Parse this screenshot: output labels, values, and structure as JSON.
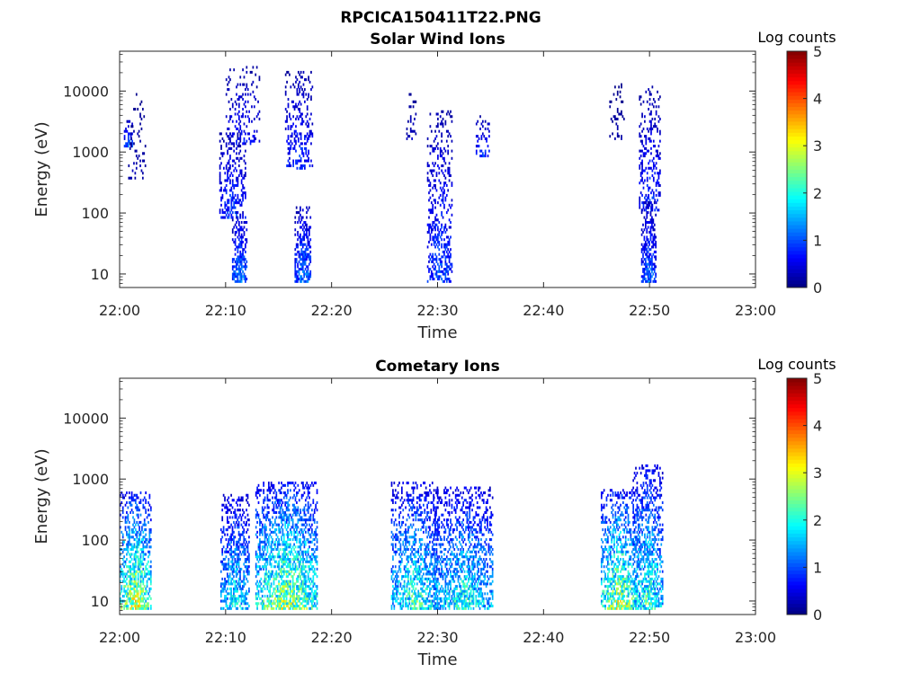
{
  "figure_title": "RPCICA150411T22.PNG",
  "chart_data": [
    {
      "type": "heatmap",
      "title": "Solar Wind Ions",
      "xlabel": "Time",
      "ylabel": "Energy (eV)",
      "x_ticks": [
        "22:00",
        "22:10",
        "22:20",
        "22:30",
        "22:40",
        "22:50",
        "23:00"
      ],
      "xlim_minutes": [
        0,
        60
      ],
      "y_scale": "log",
      "ylim": [
        6,
        45000
      ],
      "y_ticks": [
        10,
        100,
        1000,
        10000
      ],
      "y_tick_labels": [
        "10",
        "100",
        "1000",
        "10000"
      ],
      "colorbar": {
        "title": "Log counts",
        "range": [
          0,
          5
        ],
        "ticks": [
          "0",
          "1",
          "2",
          "3",
          "4",
          "5"
        ],
        "colormap": "jet"
      },
      "bursts": [
        {
          "t_start": 0.4,
          "t_end": 1.2,
          "e_low": 1100,
          "e_high": 3200,
          "max_log": 1.6,
          "density": 0.55
        },
        {
          "t_start": 0.8,
          "t_end": 2.4,
          "e_low": 300,
          "e_high": 10000,
          "max_log": 0.4,
          "density": 0.12
        },
        {
          "t_start": 9.4,
          "t_end": 11.8,
          "e_low": 80,
          "e_high": 2000,
          "max_log": 1.3,
          "density": 0.45
        },
        {
          "t_start": 10.6,
          "t_end": 12.0,
          "e_low": 7,
          "e_high": 100,
          "max_log": 1.8,
          "density": 0.7
        },
        {
          "t_start": 10.0,
          "t_end": 13.2,
          "e_low": 1200,
          "e_high": 25000,
          "max_log": 1.0,
          "density": 0.25
        },
        {
          "t_start": 15.6,
          "t_end": 18.2,
          "e_low": 500,
          "e_high": 20000,
          "max_log": 1.2,
          "density": 0.35
        },
        {
          "t_start": 16.5,
          "t_end": 18.0,
          "e_low": 7,
          "e_high": 120,
          "max_log": 1.8,
          "density": 0.7
        },
        {
          "t_start": 26.8,
          "t_end": 28.0,
          "e_low": 1500,
          "e_high": 9000,
          "max_log": 0.5,
          "density": 0.2
        },
        {
          "t_start": 29.0,
          "t_end": 31.4,
          "e_low": 7,
          "e_high": 4500,
          "max_log": 1.4,
          "density": 0.4
        },
        {
          "t_start": 33.6,
          "t_end": 34.8,
          "e_low": 800,
          "e_high": 4000,
          "max_log": 1.3,
          "density": 0.35
        },
        {
          "t_start": 46.2,
          "t_end": 47.6,
          "e_low": 1500,
          "e_high": 14000,
          "max_log": 0.3,
          "density": 0.15
        },
        {
          "t_start": 49.0,
          "t_end": 51.0,
          "e_low": 100,
          "e_high": 12000,
          "max_log": 1.2,
          "density": 0.35
        },
        {
          "t_start": 49.2,
          "t_end": 50.6,
          "e_low": 7,
          "e_high": 150,
          "max_log": 1.6,
          "density": 0.7
        }
      ]
    },
    {
      "type": "heatmap",
      "title": "Cometary Ions",
      "xlabel": "Time",
      "ylabel": "Energy (eV)",
      "x_ticks": [
        "22:00",
        "22:10",
        "22:20",
        "22:30",
        "22:40",
        "22:50",
        "23:00"
      ],
      "xlim_minutes": [
        0,
        60
      ],
      "y_scale": "log",
      "ylim": [
        6,
        45000
      ],
      "y_ticks": [
        10,
        100,
        1000,
        10000
      ],
      "y_tick_labels": [
        "10",
        "100",
        "1000",
        "10000"
      ],
      "colorbar": {
        "title": "Log counts",
        "range": [
          0,
          5
        ],
        "ticks": [
          "0",
          "1",
          "2",
          "3",
          "4",
          "5"
        ],
        "colormap": "jet"
      },
      "bursts": [
        {
          "t_start": 0.0,
          "t_end": 2.9,
          "e_low": 7,
          "e_high": 600,
          "max_log": 3.9,
          "density": 0.6
        },
        {
          "t_start": 9.5,
          "t_end": 12.2,
          "e_low": 7,
          "e_high": 550,
          "max_log": 2.6,
          "density": 0.6
        },
        {
          "t_start": 12.8,
          "t_end": 18.6,
          "e_low": 7,
          "e_high": 900,
          "max_log": 3.7,
          "density": 0.65
        },
        {
          "t_start": 25.6,
          "t_end": 30.0,
          "e_low": 7,
          "e_high": 900,
          "max_log": 3.0,
          "density": 0.55
        },
        {
          "t_start": 29.6,
          "t_end": 35.2,
          "e_low": 7,
          "e_high": 700,
          "max_log": 2.8,
          "density": 0.55
        },
        {
          "t_start": 45.4,
          "t_end": 48.8,
          "e_low": 7,
          "e_high": 650,
          "max_log": 3.8,
          "density": 0.6
        },
        {
          "t_start": 48.4,
          "t_end": 51.2,
          "e_low": 7,
          "e_high": 1700,
          "max_log": 3.0,
          "density": 0.6
        }
      ]
    }
  ]
}
